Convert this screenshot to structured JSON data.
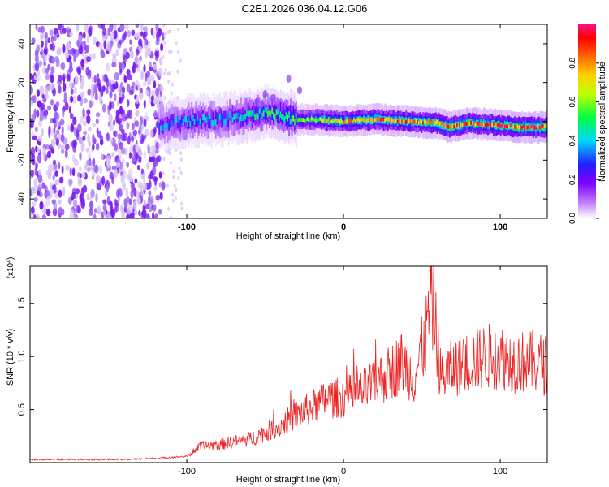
{
  "title": "C2E1.2026.036.04.12.G06",
  "chart_data": [
    {
      "type": "heatmap",
      "title": "C2E1.2026.036.04.12.G06",
      "xlabel": "Height of straight line (km)",
      "ylabel": "Frequency (Hz)",
      "xlim": [
        -200,
        130
      ],
      "ylim": [
        -50,
        50
      ],
      "xticks": [
        -100,
        0,
        100
      ],
      "xtick_labels": [
        "-100",
        "0",
        "100"
      ],
      "yticks": [
        -40,
        -20,
        0,
        20,
        40
      ],
      "ytick_labels": [
        "-40",
        "-20",
        "0",
        "20",
        "40"
      ],
      "colorbar": {
        "label": "Normalized spectral amplitude",
        "range": [
          0,
          1
        ],
        "ticks": [
          0.0,
          0.2,
          0.4,
          0.6,
          0.8
        ],
        "tick_labels": [
          "0.0",
          "0.2",
          "0.4",
          "0.6",
          "0.8"
        ],
        "colormap": [
          "#ffffff",
          "#8000ff",
          "#0000ff",
          "#00e0ff",
          "#00ff40",
          "#ffff00",
          "#ff8000",
          "#ff0000",
          "#ff1080"
        ]
      },
      "noise_region": {
        "x": [
          -200,
          -115
        ],
        "y": [
          -50,
          50
        ]
      },
      "ridge": {
        "x": [
          -118,
          -100,
          -80,
          -60,
          -50,
          -40,
          -30,
          -20,
          0,
          20,
          40,
          60,
          67,
          80,
          100,
          110,
          130
        ],
        "freq": [
          -2,
          0,
          1,
          3,
          5,
          3,
          1,
          1,
          0,
          1,
          0,
          -1,
          -3,
          -1,
          -2,
          -3,
          -3
        ],
        "amplitude": [
          0.35,
          0.4,
          0.4,
          0.45,
          0.5,
          0.5,
          0.6,
          0.7,
          0.8,
          0.85,
          0.85,
          0.85,
          0.9,
          0.9,
          0.9,
          0.95,
          0.95
        ]
      }
    },
    {
      "type": "line",
      "xlabel": "Height of straight line (km)",
      "ylabel": "SNR (10 * v/v)",
      "y_multiplier": "(x10",
      "y_multiplier_exp": "4",
      "y_multiplier_close": ")",
      "xlim": [
        -200,
        130
      ],
      "ylim": [
        0,
        1.85
      ],
      "xticks": [
        -100,
        0,
        100
      ],
      "xtick_labels": [
        "-100",
        "0",
        "100"
      ],
      "yticks": [
        0.5,
        1.0,
        1.5
      ],
      "ytick_labels": [
        "0.5",
        "1.0",
        "1.5"
      ],
      "color": "#ee2222",
      "series": [
        {
          "name": "SNR",
          "x": [
            -200,
            -180,
            -160,
            -140,
            -120,
            -100,
            -92,
            -80,
            -60,
            -40,
            -30,
            -20,
            -10,
            0,
            10,
            20,
            30,
            37,
            45,
            52,
            56,
            58,
            62,
            70,
            80,
            90,
            100,
            110,
            120,
            130
          ],
          "y": [
            0.03,
            0.03,
            0.03,
            0.03,
            0.04,
            0.06,
            0.15,
            0.17,
            0.22,
            0.35,
            0.45,
            0.52,
            0.6,
            0.62,
            0.65,
            0.75,
            0.85,
            0.95,
            0.8,
            1.15,
            1.55,
            1.4,
            0.8,
            0.9,
            0.95,
            1.0,
            1.0,
            0.95,
            0.95,
            0.92
          ]
        }
      ]
    }
  ]
}
